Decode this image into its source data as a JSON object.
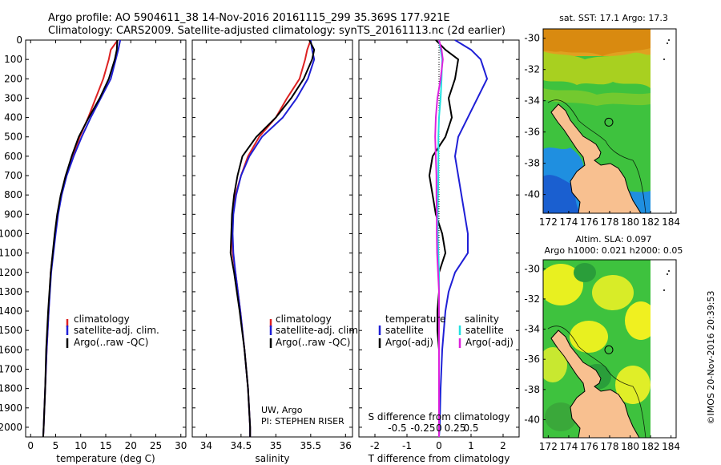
{
  "header": {
    "line1": "Argo profile: AO 5904611_38 14-Nov-2016 20161115_299 35.369S 177.921E",
    "line2": "Climatology: CARS2009. Satellite-adjusted climatology: synTS_20161113.nc (2d earlier)"
  },
  "colors": {
    "climatology": "#dd2222",
    "satellite": "#1f1fd6",
    "argo": "#000000",
    "sat_salinity": "#22e0e0",
    "argo_salinity": "#dd22dd"
  },
  "chart_data": [
    {
      "type": "line",
      "id": "temperature",
      "xlabel": "temperature (deg C)",
      "ylabel": "",
      "xlim": [
        -1,
        31
      ],
      "xticks": [
        0,
        5,
        10,
        15,
        20,
        25,
        30
      ],
      "ylim": [
        2050,
        0
      ],
      "yticks": [
        0,
        100,
        200,
        300,
        400,
        500,
        600,
        700,
        800,
        900,
        1000,
        1100,
        1200,
        1300,
        1400,
        1500,
        1600,
        1700,
        1800,
        1900,
        2000
      ],
      "legend": [
        "climatology",
        "satellite-adj. clim.",
        "Argo(..raw -QC)"
      ],
      "series": [
        {
          "name": "climatology",
          "color": "#dd2222",
          "depth": [
            0,
            50,
            100,
            200,
            300,
            400,
            500,
            600,
            700,
            800,
            900,
            1000,
            1200,
            1400,
            1600,
            1800,
            2000,
            2050
          ],
          "values": [
            17.4,
            16.0,
            15.6,
            14.5,
            13.0,
            11.5,
            9.8,
            8.4,
            7.0,
            6.1,
            5.4,
            4.9,
            4.0,
            3.6,
            3.2,
            2.9,
            2.6,
            2.5
          ]
        },
        {
          "name": "satellite-adj. clim.",
          "color": "#1f1fd6",
          "depth": [
            0,
            50,
            100,
            200,
            300,
            400,
            500,
            600,
            700,
            800,
            900,
            1000,
            1200,
            1400,
            1600,
            1800,
            2000,
            2050
          ],
          "values": [
            17.9,
            17.5,
            17.0,
            16.0,
            14.0,
            12.0,
            10.2,
            8.6,
            7.2,
            6.2,
            5.5,
            5.0,
            4.1,
            3.6,
            3.2,
            2.9,
            2.6,
            2.5
          ]
        },
        {
          "name": "Argo(..raw -QC)",
          "color": "#000000",
          "depth": [
            0,
            50,
            100,
            200,
            300,
            400,
            500,
            600,
            700,
            800,
            900,
            1000,
            1200,
            1400,
            1600,
            1800,
            2000,
            2050
          ],
          "values": [
            17.3,
            17.2,
            16.8,
            15.6,
            13.8,
            11.6,
            9.6,
            8.2,
            7.0,
            6.0,
            5.3,
            4.8,
            4.0,
            3.5,
            3.1,
            2.9,
            2.6,
            2.5
          ]
        }
      ]
    },
    {
      "type": "line",
      "id": "salinity",
      "xlabel": "salinity",
      "ylabel": "",
      "xlim": [
        33.8,
        36.1
      ],
      "xticks": [
        34,
        34.5,
        35,
        35.5,
        36
      ],
      "ylim": [
        2050,
        0
      ],
      "legend": [
        "climatology",
        "satellite-adj. clim.",
        "Argo(..raw -QC)"
      ],
      "annotations": [
        "UW, Argo",
        "PI: STEPHEN RISER"
      ],
      "series": [
        {
          "name": "climatology",
          "color": "#dd2222",
          "depth": [
            0,
            50,
            100,
            200,
            300,
            400,
            500,
            600,
            700,
            800,
            900,
            1000,
            1100,
            1200,
            1400,
            1600,
            1800,
            2000,
            2050
          ],
          "values": [
            35.5,
            35.45,
            35.42,
            35.34,
            35.16,
            35.0,
            34.76,
            34.6,
            34.5,
            34.42,
            34.38,
            34.37,
            34.38,
            34.42,
            34.49,
            34.55,
            34.6,
            34.63,
            34.63
          ]
        },
        {
          "name": "satellite-adj. clim.",
          "color": "#1f1fd6",
          "depth": [
            0,
            50,
            100,
            200,
            300,
            400,
            500,
            600,
            700,
            800,
            900,
            1000,
            1100,
            1200,
            1400,
            1600,
            1800,
            2000,
            2050
          ],
          "values": [
            35.5,
            35.52,
            35.55,
            35.46,
            35.3,
            35.1,
            34.8,
            34.62,
            34.5,
            34.43,
            34.39,
            34.38,
            34.39,
            34.42,
            34.49,
            34.55,
            34.6,
            34.63,
            34.63
          ]
        },
        {
          "name": "Argo(..raw -QC)",
          "color": "#000000",
          "depth": [
            0,
            50,
            100,
            200,
            300,
            400,
            500,
            600,
            700,
            800,
            900,
            1000,
            1100,
            1200,
            1400,
            1600,
            1800,
            2000,
            2050
          ],
          "values": [
            35.48,
            35.55,
            35.52,
            35.4,
            35.22,
            35.0,
            34.72,
            34.52,
            34.45,
            34.4,
            34.37,
            34.36,
            34.35,
            34.4,
            34.48,
            34.55,
            34.6,
            34.63,
            34.63
          ]
        }
      ]
    },
    {
      "type": "line",
      "id": "difference",
      "xlabel": "T difference from climatology",
      "xlabel_top": "S difference from climatology",
      "xlim": [
        -2.5,
        2.5
      ],
      "xticks": [
        -2,
        -1,
        0,
        1,
        2
      ],
      "xtick_labels_top": [
        "-0.5",
        "-0.25",
        "0",
        "0.25",
        "0.5"
      ],
      "ylim": [
        2050,
        0
      ],
      "legend_temperature_title": "temperature",
      "legend_salinity_title": "salinity",
      "legend": [
        "satellite",
        "Argo(-adj)",
        "satellite",
        "Argo(-adj)"
      ],
      "series": [
        {
          "name": "satellite",
          "color": "#1f1fd6",
          "depth": [
            0,
            50,
            100,
            200,
            300,
            400,
            500,
            600,
            700,
            800,
            900,
            1000,
            1100,
            1200,
            1300,
            1400,
            1500,
            1600,
            1800,
            2000,
            2050
          ],
          "values": [
            0.5,
            1.0,
            1.3,
            1.5,
            1.2,
            0.9,
            0.6,
            0.5,
            0.6,
            0.7,
            0.8,
            0.9,
            0.9,
            0.5,
            0.3,
            0.2,
            0.15,
            0.1,
            0.05,
            0.02,
            0.0
          ]
        },
        {
          "name": "Argo(-adj)",
          "color": "#000000",
          "depth": [
            0,
            50,
            100,
            200,
            300,
            400,
            500,
            600,
            700,
            800,
            900,
            1000,
            1100,
            1200,
            1300,
            1400,
            1500,
            1600,
            1800,
            2000,
            2050
          ],
          "values": [
            -0.1,
            0.2,
            0.6,
            0.5,
            0.3,
            0.4,
            0.2,
            -0.2,
            -0.3,
            -0.2,
            -0.1,
            0.1,
            0.2,
            0.0,
            0.0,
            -0.05,
            -0.05,
            0.0,
            0.0,
            0.0,
            0.0
          ]
        },
        {
          "name": "satellite",
          "color": "#22e0e0",
          "depth": [
            0,
            50,
            100,
            200,
            300,
            400,
            500,
            600,
            700,
            800,
            900,
            1000,
            1100,
            1200,
            1300,
            1400,
            1500,
            1600,
            1800,
            2000,
            2050
          ],
          "values": [
            0.0,
            0.05,
            0.1,
            0.08,
            0.05,
            0.0,
            -0.02,
            -0.02,
            -0.02,
            -0.03,
            -0.04,
            -0.04,
            -0.02,
            0.0,
            0.0,
            0.0,
            0.0,
            0.0,
            0.0,
            0.0,
            0.0
          ]
        },
        {
          "name": "Argo(-adj)",
          "color": "#dd22dd",
          "depth": [
            0,
            50,
            100,
            200,
            300,
            400,
            500,
            600,
            700,
            800,
            900,
            1000,
            1100,
            1200,
            1300,
            1400,
            1500,
            1600,
            1800,
            2000,
            2050
          ],
          "values": [
            0.0,
            0.08,
            0.12,
            0.05,
            -0.05,
            -0.1,
            -0.12,
            -0.1,
            -0.08,
            -0.08,
            -0.07,
            -0.07,
            -0.06,
            -0.03,
            0.0,
            0.0,
            0.0,
            0.0,
            0.0,
            0.0,
            0.0
          ]
        }
      ]
    },
    {
      "type": "heatmap",
      "id": "sst-map",
      "title": "sat. SST: 17.1  Argo: 17.3",
      "xticks": [
        172,
        174,
        176,
        178,
        180,
        182,
        184
      ],
      "yticks": [
        -30,
        -32,
        -34,
        -36,
        -38,
        -40
      ],
      "xlim": [
        171.5,
        184.5
      ],
      "ylim": [
        -41.2,
        -29.4
      ],
      "data_lon_max": 180,
      "profile_marker": {
        "lon": 177.921,
        "lat": -35.369
      }
    },
    {
      "type": "heatmap",
      "id": "sla-map",
      "title": "Altim. SLA: 0.097",
      "subtitle": "Argo h1000: 0.021  h2000: 0.05",
      "xticks": [
        172,
        174,
        176,
        178,
        180,
        182,
        184
      ],
      "yticks": [
        -30,
        -32,
        -34,
        -36,
        -38,
        -40
      ],
      "xlim": [
        171.5,
        184.5
      ],
      "ylim": [
        -41.2,
        -29.4
      ],
      "data_lon_max": 180,
      "profile_marker": {
        "lon": 177.921,
        "lat": -35.369
      }
    }
  ],
  "footer_stamp": "©IMOS 20-Nov-2016 20:39:53"
}
